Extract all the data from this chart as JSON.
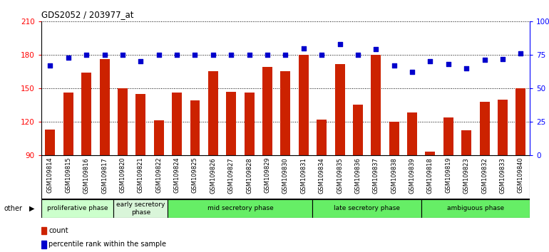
{
  "title": "GDS2052 / 203977_at",
  "samples": [
    "GSM109814",
    "GSM109815",
    "GSM109816",
    "GSM109817",
    "GSM109820",
    "GSM109821",
    "GSM109822",
    "GSM109824",
    "GSM109825",
    "GSM109826",
    "GSM109827",
    "GSM109828",
    "GSM109829",
    "GSM109830",
    "GSM109831",
    "GSM109834",
    "GSM109835",
    "GSM109836",
    "GSM109837",
    "GSM109838",
    "GSM109839",
    "GSM109818",
    "GSM109819",
    "GSM109823",
    "GSM109832",
    "GSM109833",
    "GSM109840"
  ],
  "counts": [
    113,
    146,
    164,
    176,
    150,
    145,
    121,
    146,
    139,
    165,
    147,
    146,
    169,
    165,
    180,
    122,
    172,
    135,
    180,
    120,
    128,
    93,
    124,
    112,
    138,
    140,
    150
  ],
  "percentiles": [
    67,
    73,
    75,
    75,
    75,
    70,
    75,
    75,
    75,
    75,
    75,
    75,
    75,
    75,
    80,
    75,
    83,
    75,
    79,
    67,
    62,
    70,
    68,
    65,
    71,
    72,
    76
  ],
  "phases": [
    {
      "name": "proliferative phase",
      "start": 0,
      "end": 4,
      "color": "#ccffcc"
    },
    {
      "name": "early secretory\nphase",
      "start": 4,
      "end": 7,
      "color": "#d9f5d9"
    },
    {
      "name": "mid secretory phase",
      "start": 7,
      "end": 15,
      "color": "#66ee66"
    },
    {
      "name": "late secretory phase",
      "start": 15,
      "end": 21,
      "color": "#66ee66"
    },
    {
      "name": "ambiguous phase",
      "start": 21,
      "end": 27,
      "color": "#66ee66"
    }
  ],
  "ylim_left": [
    90,
    210
  ],
  "ylim_right": [
    0,
    100
  ],
  "yticks_left": [
    90,
    120,
    150,
    180,
    210
  ],
  "yticks_right": [
    0,
    25,
    50,
    75,
    100
  ],
  "bar_color": "#cc2200",
  "dot_color": "#0000cc",
  "plot_bg": "#ffffff",
  "fig_bg": "#ffffff",
  "xticklabel_bg": "#d8d8d8"
}
